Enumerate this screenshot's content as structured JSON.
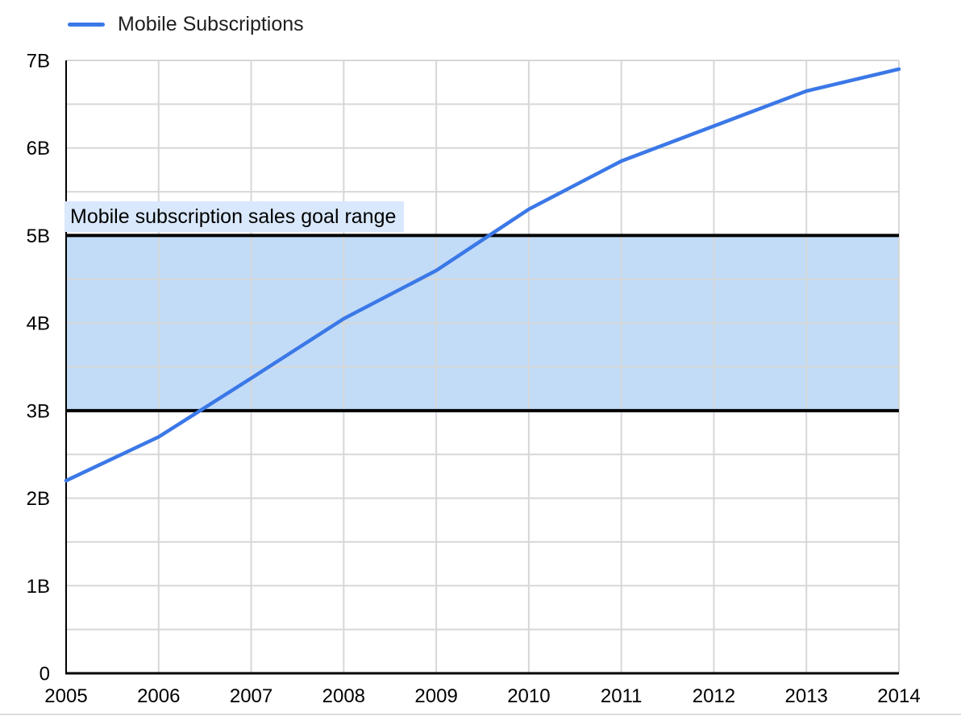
{
  "legend": {
    "label": "Mobile Subscriptions"
  },
  "chart_data": {
    "type": "line",
    "title": "",
    "xlabel": "",
    "ylabel": "",
    "x": [
      "2005",
      "2006",
      "2007",
      "2008",
      "2009",
      "2010",
      "2011",
      "2012",
      "2013",
      "2014"
    ],
    "series": [
      {
        "name": "Mobile Subscriptions",
        "color": "#3b78e7",
        "values": [
          2.2,
          2.7,
          3.37,
          4.05,
          4.6,
          5.3,
          5.85,
          6.25,
          6.65,
          6.9
        ]
      }
    ],
    "ylim": [
      0,
      7
    ],
    "y_major_step": 1,
    "y_minor_step": 0.5,
    "y_tick_labels": [
      "0",
      "1B",
      "2B",
      "3B",
      "4B",
      "5B",
      "6B",
      "7B"
    ],
    "grid": "on",
    "gridline_color": "#d7d7d7",
    "axis_color": "#000000",
    "text_color": "#000000",
    "legend_position": "top-left",
    "annotations": {
      "goal_band": {
        "from": 3,
        "to": 5,
        "label": "Mobile subscription sales goal range",
        "fill": "#c2dcf8",
        "border_color": "#000000",
        "label_background": "#d9e8fc"
      }
    }
  }
}
